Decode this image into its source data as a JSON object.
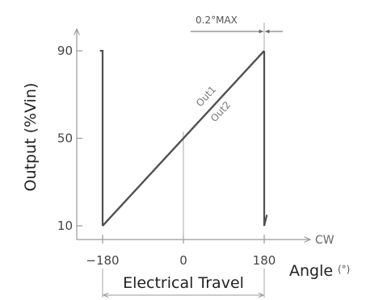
{
  "chart_data": {
    "type": "line",
    "xlabel": "Angle",
    "xunit": "(°)",
    "xdirection": "CW",
    "ylabel": "Output (%Vin)",
    "xticks": [
      -180,
      0,
      180
    ],
    "xtick_labels": [
      "−180",
      "0",
      "180"
    ],
    "yticks": [
      10,
      50,
      90
    ],
    "yrange": [
      10,
      90
    ],
    "xrange": [
      -180,
      180
    ],
    "series": [
      {
        "name": "Out1",
        "points": [
          [
            -180,
            10
          ],
          [
            180,
            90
          ]
        ]
      },
      {
        "name": "Out2",
        "points": [
          [
            -180,
            10
          ],
          [
            180,
            90
          ]
        ]
      }
    ],
    "edge_segments": [
      {
        "points": [
          [
            -186,
            90
          ],
          [
            -180,
            90
          ],
          [
            -180,
            10
          ]
        ]
      },
      {
        "points": [
          [
            180,
            90
          ],
          [
            180,
            10
          ],
          [
            186,
            15
          ]
        ]
      }
    ],
    "annotations": {
      "max_gap": "0.2°MAX",
      "travel": "Electrical Travel"
    }
  }
}
